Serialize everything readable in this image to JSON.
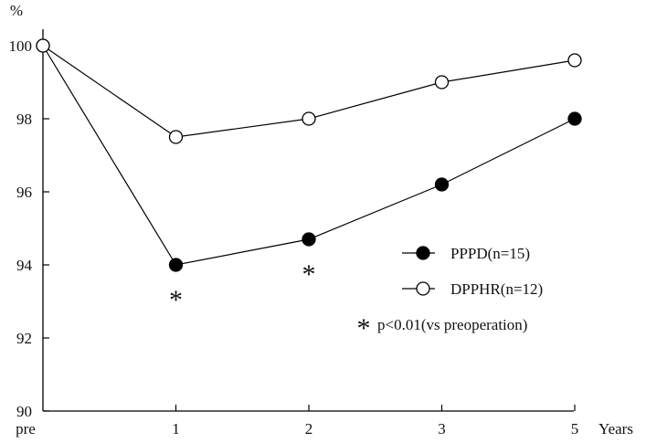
{
  "chart_data": {
    "type": "line",
    "title": "",
    "ylabel": "%",
    "xlabel": "Years",
    "categories": [
      "pre",
      "1",
      "2",
      "3",
      "5"
    ],
    "ylim": [
      90,
      100
    ],
    "yticks": [
      90,
      92,
      94,
      96,
      98,
      100
    ],
    "grid": false,
    "legend_position": "lower-right",
    "series": [
      {
        "name": "PPPD(n=15)",
        "marker": "filled-circle",
        "color": "#000000",
        "values": [
          100.0,
          94.0,
          94.7,
          96.2,
          98.0
        ]
      },
      {
        "name": "DPPHR(n=12)",
        "marker": "open-circle",
        "color": "#000000",
        "values": [
          100.0,
          97.5,
          98.0,
          99.0,
          99.6
        ]
      }
    ],
    "annotations": [
      {
        "symbol": "*",
        "category": "1",
        "series": "PPPD(n=15)"
      },
      {
        "symbol": "*",
        "category": "2",
        "series": "PPPD(n=15)"
      }
    ],
    "footnote": {
      "symbol": "*",
      "text": "p<0.01(vs preoperation)"
    }
  }
}
